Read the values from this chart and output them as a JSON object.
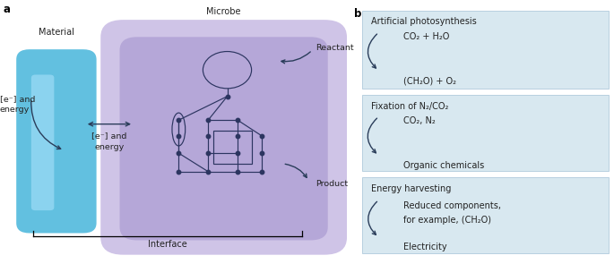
{
  "panel_a_label": "a",
  "panel_b_label": "b",
  "material_label": "Material",
  "microbe_label": "Microbe",
  "interface_label": "Interface",
  "reactant_label": "Reactant",
  "product_label": "Product",
  "electrons_left": "[e⁻] and\nenergy",
  "electrons_middle": "[e⁻] and\nenergy",
  "material_color": "#62c0e0",
  "material_highlight": "#9adaf5",
  "microbe_outer_color": "#c0b0e0",
  "microbe_inner_color": "#a898d0",
  "network_color": "#2c3560",
  "bg_color": "#ffffff",
  "box_bg_color": "#d8e8f0",
  "box_border_color": "#b8cfe0",
  "box1_title": "Artificial photosynthesis",
  "box1_line1": "CO₂ + H₂O",
  "box1_line2": "(CH₂O) + O₂",
  "box2_title": "Fixation of N₂/CO₂",
  "box2_line1": "CO₂, N₂",
  "box2_line2": "Organic chemicals",
  "box3_title": "Energy harvesting",
  "box3_line1a": "Reduced components,",
  "box3_line1b": "for example, (CH₂O)",
  "box3_line2": "Electricity",
  "text_color": "#222222",
  "arrow_color": "#2a3d5a"
}
